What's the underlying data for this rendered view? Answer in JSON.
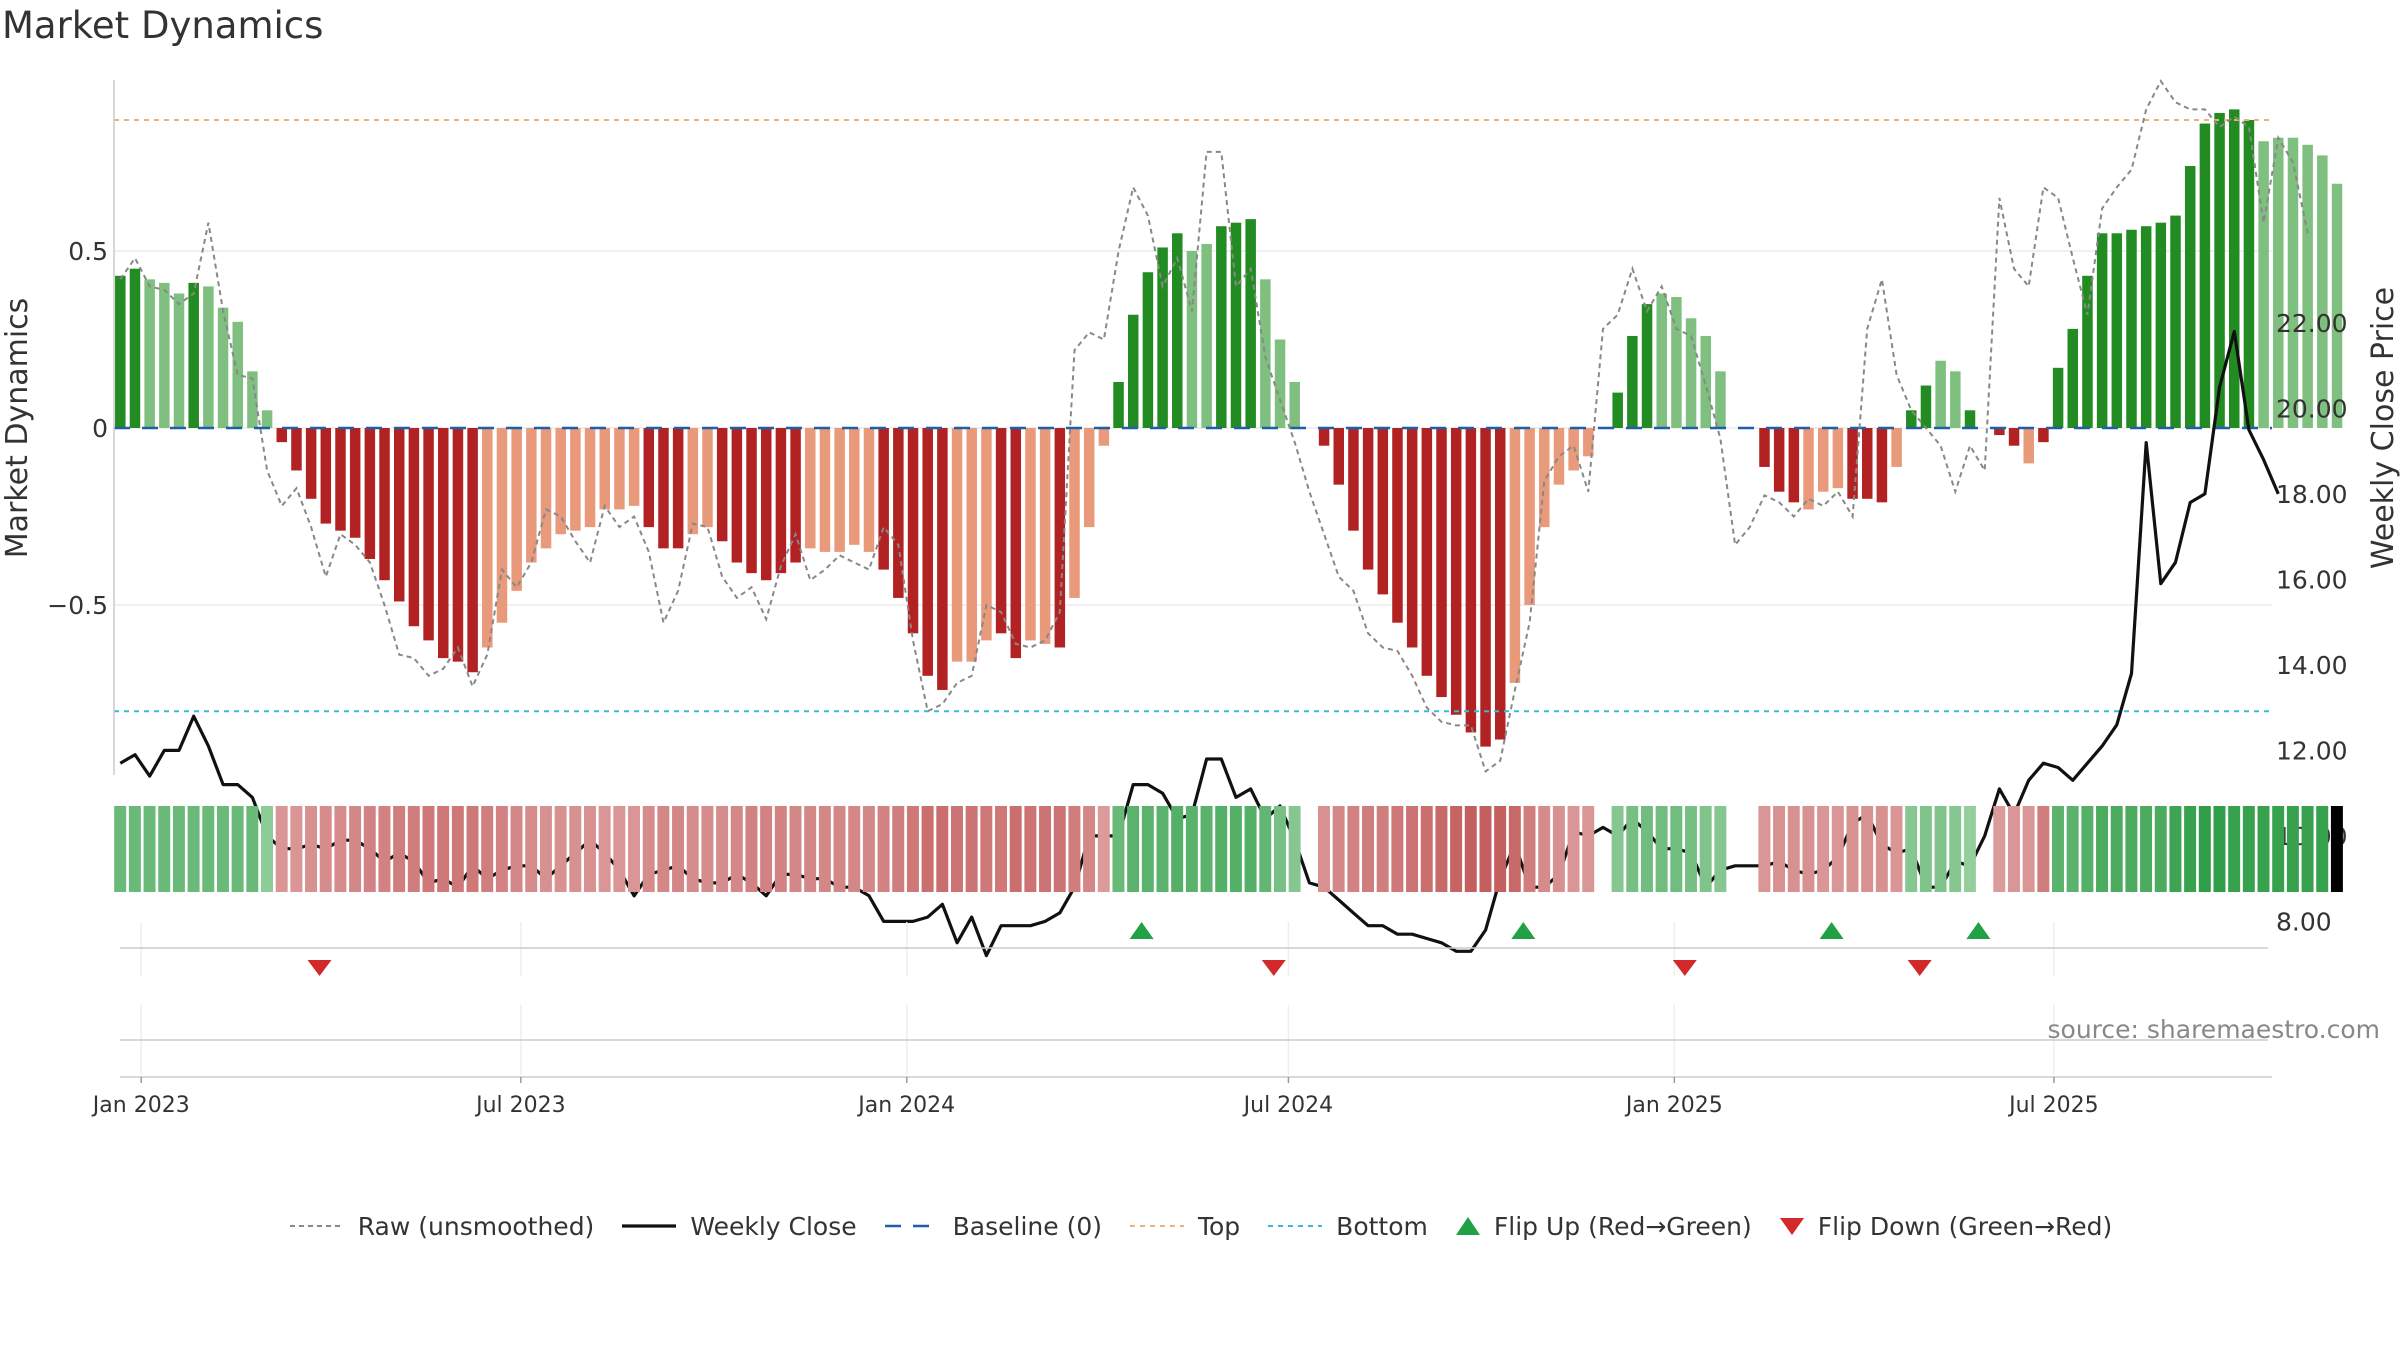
{
  "page": {
    "title": "Market Dynamics",
    "source": "source: sharemaestro.com"
  },
  "legend": {
    "items": [
      {
        "key": "raw",
        "label": "Raw (unsmoothed)"
      },
      {
        "key": "close",
        "label": "Weekly Close"
      },
      {
        "key": "baseline",
        "label": "Baseline (0)"
      },
      {
        "key": "top",
        "label": "Top"
      },
      {
        "key": "bottom",
        "label": "Bottom"
      },
      {
        "key": "flip_up",
        "label": "Flip Up (Red→Green)"
      },
      {
        "key": "flip_down",
        "label": "Flip Down (Green→Red)"
      }
    ]
  },
  "colors": {
    "strong_green": "#228b22",
    "light_green": "#7fbf7f",
    "strong_red": "#b22222",
    "light_red": "#e89a7a",
    "close_line": "#111111",
    "raw_line": "#888888",
    "baseline": "#1f5fa8",
    "top": "#e8b27a",
    "bottom": "#3bb8d8",
    "flip_up": "#22a046",
    "flip_down": "#d22a2a"
  },
  "chart_data": {
    "type": "bar",
    "title": "Market Dynamics",
    "ylabel": "Market Dynamics",
    "y2label": "Weekly Close Price",
    "ylim": [
      -0.98,
      0.98
    ],
    "y2lim": [
      6.9,
      23.05
    ],
    "yticks": [
      0.5,
      0,
      -0.5
    ],
    "ytick_labels": [
      "0.5",
      "0",
      "−0.5"
    ],
    "y2ticks": [
      8,
      10,
      12,
      14,
      16,
      18,
      20,
      22
    ],
    "y2tick_labels": [
      "8.00",
      "10.00",
      "12.00",
      "14.00",
      "16.00",
      "18.00",
      "20.00",
      "22.00"
    ],
    "top_level": 0.87,
    "bottom_level": -0.8,
    "x_start": "2022-12-19",
    "x_end": "2025-10-13",
    "x_ticks": [
      "2023-01-01",
      "2023-07-01",
      "2024-01-01",
      "2024-07-01",
      "2025-01-01",
      "2025-07-01"
    ],
    "x_tick_labels": [
      "Jan 2023",
      "Jul 2023",
      "Jan 2024",
      "Jul 2024",
      "Jan 2025",
      "Jul 2025"
    ],
    "weekly": {
      "start": "2022-12-19",
      "step_days": 7,
      "dynamics": [
        0.43,
        0.45,
        0.42,
        0.41,
        0.38,
        0.41,
        0.4,
        0.34,
        0.3,
        0.16,
        0.05,
        -0.04,
        -0.12,
        -0.2,
        -0.27,
        -0.29,
        -0.31,
        -0.37,
        -0.43,
        -0.49,
        -0.56,
        -0.6,
        -0.65,
        -0.66,
        -0.69,
        -0.62,
        -0.55,
        -0.46,
        -0.38,
        -0.34,
        -0.3,
        -0.29,
        -0.28,
        -0.23,
        -0.23,
        -0.22,
        -0.28,
        -0.34,
        -0.34,
        -0.3,
        -0.28,
        -0.32,
        -0.38,
        -0.41,
        -0.43,
        -0.41,
        -0.38,
        -0.34,
        -0.35,
        -0.35,
        -0.33,
        -0.35,
        -0.4,
        -0.48,
        -0.58,
        -0.7,
        -0.74,
        -0.66,
        -0.66,
        -0.6,
        -0.58,
        -0.65,
        -0.6,
        -0.61,
        -0.62,
        -0.48,
        -0.28,
        -0.05,
        0.13,
        0.32,
        0.44,
        0.51,
        0.55,
        0.5,
        0.52,
        0.57,
        0.58,
        0.59,
        0.42,
        0.25,
        0.13,
        0.0,
        -0.05,
        -0.16,
        -0.29,
        -0.4,
        -0.47,
        -0.55,
        -0.62,
        -0.7,
        -0.76,
        -0.81,
        -0.86,
        -0.9,
        -0.88,
        -0.72,
        -0.5,
        -0.28,
        -0.16,
        -0.12,
        -0.08,
        0.0,
        0.1,
        0.26,
        0.35,
        0.38,
        0.37,
        0.31,
        0.26,
        0.16,
        0.0,
        0.0,
        -0.11,
        -0.18,
        -0.21,
        -0.23,
        -0.18,
        -0.17,
        -0.2,
        -0.2,
        -0.21,
        -0.11,
        0.05,
        0.12,
        0.19,
        0.16,
        0.05,
        0.0,
        -0.02,
        -0.05,
        -0.1,
        -0.04,
        0.17,
        0.28,
        0.43,
        0.55,
        0.55,
        0.56,
        0.57,
        0.58,
        0.6,
        0.74,
        0.86,
        0.89,
        0.9,
        0.87,
        0.81,
        0.82,
        0.82,
        0.8,
        0.77,
        0.69
      ],
      "strength": [
        "s",
        "s",
        "l",
        "l",
        "l",
        "s",
        "l",
        "l",
        "l",
        "l",
        "l",
        "s",
        "s",
        "s",
        "s",
        "s",
        "s",
        "s",
        "s",
        "s",
        "s",
        "s",
        "s",
        "s",
        "s",
        "l",
        "l",
        "l",
        "l",
        "l",
        "l",
        "l",
        "l",
        "l",
        "l",
        "l",
        "s",
        "s",
        "s",
        "l",
        "l",
        "s",
        "s",
        "s",
        "s",
        "s",
        "s",
        "l",
        "l",
        "l",
        "l",
        "l",
        "s",
        "s",
        "s",
        "s",
        "s",
        "l",
        "l",
        "l",
        "s",
        "s",
        "l",
        "l",
        "s",
        "l",
        "l",
        "l",
        "s",
        "s",
        "s",
        "s",
        "s",
        "l",
        "l",
        "s",
        "s",
        "s",
        "l",
        "l",
        "l",
        "s",
        "s",
        "s",
        "s",
        "s",
        "s",
        "s",
        "s",
        "s",
        "s",
        "s",
        "s",
        "s",
        "s",
        "l",
        "l",
        "l",
        "l",
        "l",
        "l",
        "l",
        "s",
        "s",
        "s",
        "l",
        "l",
        "l",
        "l",
        "l",
        "l",
        "l",
        "s",
        "s",
        "s",
        "l",
        "l",
        "l",
        "s",
        "s",
        "s",
        "l",
        "s",
        "s",
        "l",
        "l",
        "s",
        "s",
        "s",
        "s",
        "l",
        "s",
        "s",
        "s",
        "s",
        "s",
        "s",
        "s",
        "s",
        "s",
        "s",
        "s",
        "s",
        "s",
        "s",
        "s",
        "l",
        "l",
        "l",
        "l",
        "l"
      ],
      "raw": [
        0.42,
        0.48,
        0.4,
        0.39,
        0.35,
        0.38,
        0.58,
        0.33,
        0.15,
        0.14,
        -0.12,
        -0.22,
        -0.17,
        -0.28,
        -0.42,
        -0.3,
        -0.33,
        -0.38,
        -0.5,
        -0.64,
        -0.65,
        -0.7,
        -0.68,
        -0.62,
        -0.73,
        -0.64,
        -0.4,
        -0.45,
        -0.38,
        -0.23,
        -0.25,
        -0.32,
        -0.38,
        -0.22,
        -0.28,
        -0.25,
        -0.35,
        -0.55,
        -0.46,
        -0.27,
        -0.28,
        -0.42,
        -0.48,
        -0.45,
        -0.54,
        -0.39,
        -0.3,
        -0.43,
        -0.4,
        -0.36,
        -0.38,
        -0.4,
        -0.28,
        -0.33,
        -0.6,
        -0.8,
        -0.78,
        -0.72,
        -0.7,
        -0.5,
        -0.52,
        -0.61,
        -0.62,
        -0.6,
        -0.52,
        0.22,
        0.27,
        0.25,
        0.5,
        0.68,
        0.6,
        0.4,
        0.48,
        0.33,
        0.78,
        0.78,
        0.4,
        0.45,
        0.2,
        0.08,
        -0.04,
        -0.18,
        -0.3,
        -0.42,
        -0.46,
        -0.58,
        -0.62,
        -0.63,
        -0.7,
        -0.79,
        -0.83,
        -0.84,
        -0.84,
        -0.97,
        -0.94,
        -0.74,
        -0.55,
        -0.15,
        -0.08,
        -0.05,
        -0.18,
        0.28,
        0.32,
        0.45,
        0.33,
        0.4,
        0.28,
        0.26,
        0.12,
        -0.03,
        -0.33,
        -0.28,
        -0.19,
        -0.21,
        -0.25,
        -0.2,
        -0.22,
        -0.18,
        -0.25,
        0.28,
        0.42,
        0.15,
        0.05,
        0.0,
        -0.05,
        -0.18,
        -0.05,
        -0.12,
        0.65,
        0.45,
        0.4,
        0.68,
        0.65,
        0.48,
        0.32,
        0.62,
        0.68,
        0.73,
        0.9,
        0.98,
        0.92,
        0.9,
        0.9,
        0.85,
        0.88,
        0.85,
        0.58,
        0.82,
        0.75,
        0.55
      ],
      "close": [
        11.7,
        11.9,
        11.4,
        12.0,
        12.0,
        12.8,
        12.1,
        11.2,
        11.2,
        10.9,
        10.0,
        9.7,
        9.7,
        9.8,
        9.7,
        9.9,
        9.9,
        9.7,
        9.4,
        9.6,
        9.4,
        8.9,
        9.0,
        8.8,
        9.3,
        9.0,
        9.2,
        9.3,
        9.3,
        9.0,
        9.3,
        9.6,
        9.9,
        9.6,
        9.2,
        8.6,
        9.1,
        9.2,
        9.3,
        9.0,
        8.9,
        8.9,
        9.1,
        8.9,
        8.6,
        9.1,
        9.1,
        9.0,
        9.0,
        8.8,
        8.8,
        8.6,
        8.0,
        8.0,
        8.0,
        8.1,
        8.4,
        7.5,
        8.1,
        7.2,
        7.9,
        7.9,
        7.9,
        8.0,
        8.2,
        8.8,
        10.0,
        10.0,
        10.0,
        11.2,
        11.2,
        11.0,
        10.4,
        10.5,
        11.8,
        11.8,
        10.9,
        11.1,
        10.4,
        10.7,
        9.9,
        8.9,
        8.8,
        8.5,
        8.2,
        7.9,
        7.9,
        7.7,
        7.7,
        7.6,
        7.5,
        7.3,
        7.3,
        7.8,
        9.0,
        9.8,
        8.8,
        8.8,
        9.1,
        10.1,
        10.0,
        10.2,
        10.0,
        10.4,
        10.1,
        9.7,
        9.7,
        9.6,
        8.8,
        9.2,
        9.3,
        9.3,
        9.3,
        9.4,
        9.2,
        9.1,
        9.2,
        9.5,
        10.3,
        10.5,
        9.8,
        9.6,
        9.7,
        8.8,
        8.8,
        9.4,
        9.3,
        10.0,
        11.1,
        10.5,
        11.3,
        11.7,
        11.6,
        11.3,
        11.7,
        12.1,
        12.6,
        13.8,
        19.2,
        15.9,
        16.4,
        17.8,
        18.0,
        20.5,
        21.8,
        19.5,
        18.8,
        18.0
      ],
      "heat": [
        0.5,
        0.5,
        0.5,
        0.5,
        0.5,
        0.5,
        0.5,
        0.5,
        0.5,
        0.5,
        0.25,
        0.3,
        0.3,
        0.35,
        0.4,
        0.4,
        0.45,
        0.5,
        0.5,
        0.55,
        0.55,
        0.6,
        0.6,
        0.6,
        0.6,
        0.55,
        0.5,
        0.45,
        0.4,
        0.35,
        0.35,
        0.35,
        0.35,
        0.3,
        0.3,
        0.3,
        0.4,
        0.45,
        0.45,
        0.4,
        0.4,
        0.4,
        0.45,
        0.5,
        0.5,
        0.5,
        0.45,
        0.45,
        0.45,
        0.45,
        0.45,
        0.45,
        0.5,
        0.55,
        0.6,
        0.7,
        0.7,
        0.65,
        0.65,
        0.6,
        0.6,
        0.7,
        0.65,
        0.65,
        0.65,
        0.55,
        0.45,
        0.25,
        0.5,
        0.6,
        0.6,
        0.6,
        0.65,
        0.6,
        0.6,
        0.65,
        0.65,
        0.65,
        0.55,
        0.4,
        0.3,
        0.3,
        0.35,
        0.45,
        0.5,
        0.55,
        0.55,
        0.6,
        0.65,
        0.7,
        0.75,
        0.8,
        0.85,
        0.85,
        0.85,
        0.75,
        0.55,
        0.4,
        0.35,
        0.3,
        0.3,
        0.3,
        0.3,
        0.4,
        0.45,
        0.45,
        0.45,
        0.4,
        0.35,
        0.3,
        0.25,
        0.25,
        0.3,
        0.35,
        0.35,
        0.35,
        0.3,
        0.3,
        0.35,
        0.35,
        0.35,
        0.3,
        0.3,
        0.35,
        0.35,
        0.3,
        0.2,
        0.2,
        0.25,
        0.3,
        0.3,
        0.55,
        0.6,
        0.6,
        0.65,
        0.7,
        0.7,
        0.7,
        0.7,
        0.7,
        0.8,
        0.85,
        0.9,
        0.9,
        0.85,
        0.85,
        0.85,
        0.85,
        0.85,
        0.85,
        0.85
      ]
    },
    "flip_up": [
      "2024-04-22",
      "2024-10-21",
      "2025-03-17",
      "2025-05-26"
    ],
    "flip_down": [
      "2023-03-27",
      "2024-06-24",
      "2025-01-06",
      "2025-04-28"
    ]
  }
}
